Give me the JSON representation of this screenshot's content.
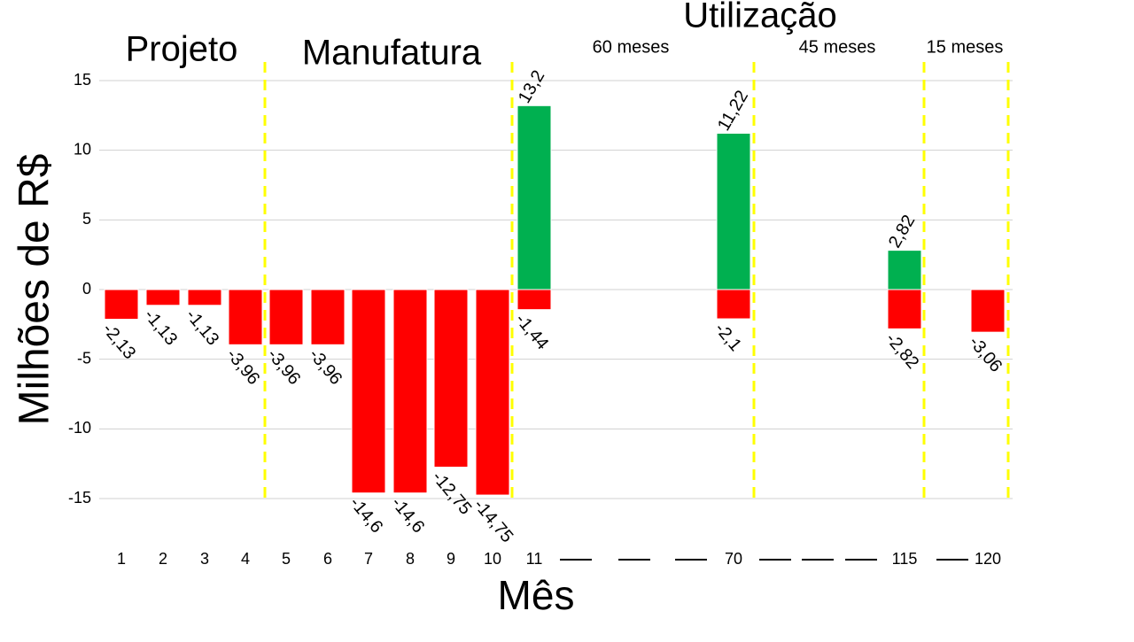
{
  "chart_data": {
    "type": "bar",
    "annotations": [
      "Projeto",
      "Manufatura",
      "Utilização",
      "60 meses",
      "45 meses",
      "15 meses"
    ],
    "x_label": "Mês",
    "y_label": "Milhões de R$",
    "categories": [
      "1",
      "2",
      "3",
      "4",
      "5",
      "6",
      "7",
      "8",
      "9",
      "10",
      "11",
      null,
      null,
      null,
      "70",
      null,
      null,
      null,
      "115",
      null,
      "120"
    ],
    "series": [
      {
        "color": "#ff0000",
        "values": [
          -2.13,
          -1.13,
          -1.13,
          -3.96,
          -3.96,
          -3.96,
          -14.6,
          -14.6,
          -12.75,
          -14.75,
          -1.44,
          null,
          null,
          null,
          -2.1,
          null,
          null,
          null,
          -2.82,
          null,
          -3.06
        ],
        "value_labels": [
          "-2,13",
          "-1,13",
          "-1,13",
          "-3,96",
          "-3,96",
          "-3,96",
          "-14,6",
          "-14,6",
          "-12,75",
          "-14,75",
          "-1,44",
          null,
          null,
          null,
          "-2,1",
          null,
          null,
          null,
          "-2,82",
          null,
          "-3,06"
        ]
      },
      {
        "color": "#00b050",
        "values": [
          null,
          null,
          null,
          null,
          null,
          null,
          null,
          null,
          null,
          null,
          13.2,
          null,
          null,
          null,
          11.22,
          null,
          null,
          null,
          2.82,
          null,
          null
        ],
        "value_labels": [
          null,
          null,
          null,
          null,
          null,
          null,
          null,
          null,
          null,
          null,
          "13,2",
          null,
          null,
          null,
          "11,22",
          null,
          null,
          null,
          "2,82",
          null,
          null
        ]
      }
    ],
    "ylim": [
      -15,
      15
    ],
    "yticks": [
      -15,
      -10,
      -5,
      0,
      5,
      10,
      15
    ],
    "grid": true
  }
}
